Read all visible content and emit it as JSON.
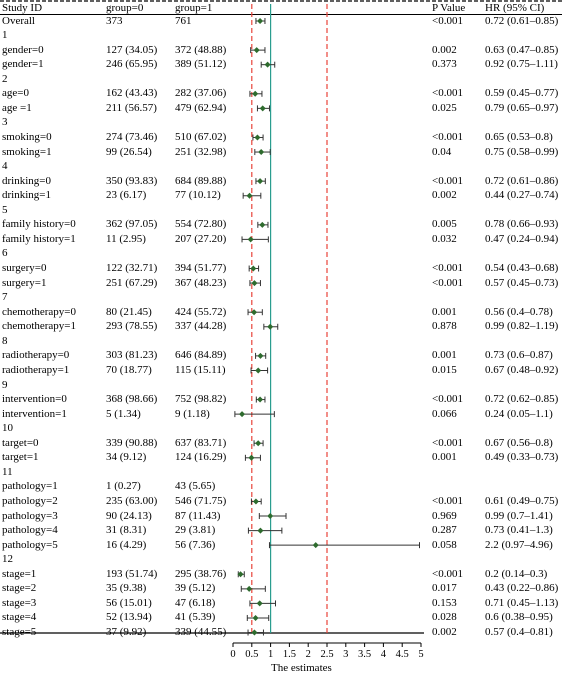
{
  "headers": {
    "study_id": "Study ID",
    "group0": "group=0",
    "group1": "group=1",
    "p_value": "P Value",
    "hr": "HR (95% CI)"
  },
  "rows": [
    {
      "label": "Overall",
      "g0": "373",
      "g1": "761",
      "p": "<0.001",
      "hr_text": "0.72 (0.61–0.85)"
    },
    {
      "label": "1",
      "g0": "",
      "g1": "",
      "p": "",
      "hr_text": ""
    },
    {
      "label": "gender=0",
      "g0": "127 (34.05)",
      "g1": "372 (48.88)",
      "p": "0.002",
      "hr_text": "0.63 (0.47–0.85)"
    },
    {
      "label": "gender=1",
      "g0": "246 (65.95)",
      "g1": "389 (51.12)",
      "p": "0.373",
      "hr_text": "0.92 (0.75–1.11)"
    },
    {
      "label": "2",
      "g0": "",
      "g1": "",
      "p": "",
      "hr_text": ""
    },
    {
      "label": "age=0",
      "g0": "162 (43.43)",
      "g1": "282 (37.06)",
      "p": "<0.001",
      "hr_text": "0.59 (0.45–0.77)"
    },
    {
      "label": "age =1",
      "g0": "211 (56.57)",
      "g1": "479 (62.94)",
      "p": "0.025",
      "hr_text": "0.79 (0.65–0.97)"
    },
    {
      "label": "3",
      "g0": "",
      "g1": "",
      "p": "",
      "hr_text": ""
    },
    {
      "label": "smoking=0",
      "g0": "274 (73.46)",
      "g1": "510 (67.02)",
      "p": "<0.001",
      "hr_text": "0.65 (0.53–0.8)"
    },
    {
      "label": "smoking=1",
      "g0": "99 (26.54)",
      "g1": "251 (32.98)",
      "p": "0.04",
      "hr_text": "0.75 (0.58–0.99)"
    },
    {
      "label": "4",
      "g0": "",
      "g1": "",
      "p": "",
      "hr_text": ""
    },
    {
      "label": "drinking=0",
      "g0": "350 (93.83)",
      "g1": "684 (89.88)",
      "p": "<0.001",
      "hr_text": "0.72 (0.61–0.86)"
    },
    {
      "label": "drinking=1",
      "g0": "23 (6.17)",
      "g1": "77 (10.12)",
      "p": "0.002",
      "hr_text": "0.44 (0.27–0.74)"
    },
    {
      "label": "5",
      "g0": "",
      "g1": "",
      "p": "",
      "hr_text": ""
    },
    {
      "label": "family history=0",
      "g0": "362 (97.05)",
      "g1": "554 (72.80)",
      "p": "0.005",
      "hr_text": "0.78 (0.66–0.93)"
    },
    {
      "label": "family history=1",
      "g0": "11 (2.95)",
      "g1": "207 (27.20)",
      "p": "0.032",
      "hr_text": "0.47 (0.24–0.94)"
    },
    {
      "label": "6",
      "g0": "",
      "g1": "",
      "p": "",
      "hr_text": ""
    },
    {
      "label": "surgery=0",
      "g0": "122 (32.71)",
      "g1": "394 (51.77)",
      "p": "<0.001",
      "hr_text": "0.54 (0.43–0.68)"
    },
    {
      "label": "surgery=1",
      "g0": "251 (67.29)",
      "g1": "367 (48.23)",
      "p": "<0.001",
      "hr_text": "0.57 (0.45–0.73)"
    },
    {
      "label": "7",
      "g0": "",
      "g1": "",
      "p": "",
      "hr_text": ""
    },
    {
      "label": "chemotherapy=0",
      "g0": "80 (21.45)",
      "g1": "424 (55.72)",
      "p": "0.001",
      "hr_text": "0.56 (0.4–0.78)"
    },
    {
      "label": "chemotherapy=1",
      "g0": "293 (78.55)",
      "g1": "337 (44.28)",
      "p": "0.878",
      "hr_text": "0.99 (0.82–1.19)"
    },
    {
      "label": "8",
      "g0": "",
      "g1": "",
      "p": "",
      "hr_text": ""
    },
    {
      "label": "radiotherapy=0",
      "g0": "303 (81.23)",
      "g1": "646 (84.89)",
      "p": "0.001",
      "hr_text": "0.73 (0.6–0.87)"
    },
    {
      "label": "radiotherapy=1",
      "g0": "70 (18.77)",
      "g1": "115 (15.11)",
      "p": "0.015",
      "hr_text": "0.67 (0.48–0.92)"
    },
    {
      "label": "9",
      "g0": "",
      "g1": "",
      "p": "",
      "hr_text": ""
    },
    {
      "label": "intervention=0",
      "g0": "368 (98.66)",
      "g1": "752 (98.82)",
      "p": "<0.001",
      "hr_text": "0.72 (0.62–0.85)"
    },
    {
      "label": "intervention=1",
      "g0": "5 (1.34)",
      "g1": "9 (1.18)",
      "p": "0.066",
      "hr_text": "0.24 (0.05–1.1)"
    },
    {
      "label": "10",
      "g0": "",
      "g1": "",
      "p": "",
      "hr_text": ""
    },
    {
      "label": "target=0",
      "g0": "339 (90.88)",
      "g1": "637 (83.71)",
      "p": "<0.001",
      "hr_text": "0.67 (0.56–0.8)"
    },
    {
      "label": "target=1",
      "g0": "34 (9.12)",
      "g1": "124 (16.29)",
      "p": "0.001",
      "hr_text": "0.49 (0.33–0.73)"
    },
    {
      "label": "11",
      "g0": "",
      "g1": "",
      "p": "",
      "hr_text": ""
    },
    {
      "label": "pathology=1",
      "g0": "1 (0.27)",
      "g1": "43 (5.65)",
      "p": "",
      "hr_text": ""
    },
    {
      "label": "pathology=2",
      "g0": "235 (63.00)",
      "g1": "546 (71.75)",
      "p": "<0.001",
      "hr_text": "0.61 (0.49–0.75)"
    },
    {
      "label": "pathology=3",
      "g0": "90 (24.13)",
      "g1": "87 (11.43)",
      "p": "0.969",
      "hr_text": "0.99 (0.7–1.41)"
    },
    {
      "label": "pathology=4",
      "g0": "31 (8.31)",
      "g1": "29 (3.81)",
      "p": "0.287",
      "hr_text": "0.73 (0.41–1.3)"
    },
    {
      "label": "pathology=5",
      "g0": "16 (4.29)",
      "g1": "56 (7.36)",
      "p": "0.058",
      "hr_text": "2.2 (0.97–4.96)"
    },
    {
      "label": "12",
      "g0": "",
      "g1": "",
      "p": "",
      "hr_text": ""
    },
    {
      "label": "stage=1",
      "g0": "193 (51.74)",
      "g1": "295 (38.76)",
      "p": "<0.001",
      "hr_text": "0.2 (0.14–0.3)"
    },
    {
      "label": "stage=2",
      "g0": "35 (9.38)",
      "g1": "39 (5.12)",
      "p": "0.017",
      "hr_text": "0.43 (0.22–0.86)"
    },
    {
      "label": "stage=3",
      "g0": "56 (15.01)",
      "g1": "47 (6.18)",
      "p": "0.153",
      "hr_text": "0.71 (0.45–1.13)"
    },
    {
      "label": "stage=4",
      "g0": "52 (13.94)",
      "g1": "41 (5.39)",
      "p": "0.028",
      "hr_text": "0.6 (0.38–0.95)"
    },
    {
      "label": "stage=5",
      "g0": "37 (9.92)",
      "g1": "339 (44.55)",
      "p": "0.002",
      "hr_text": "0.57 (0.4–0.81)"
    }
  ],
  "chart_data": {
    "type": "forest",
    "xlabel": "The estimates",
    "xlim": [
      0,
      5
    ],
    "xticks": [
      "0",
      "0.5",
      "1",
      "1.5",
      "2",
      "2.5",
      "3",
      "3.5",
      "4",
      "4.5",
      "5"
    ],
    "reference_lines": [
      {
        "x": 0.5,
        "style": "dashed",
        "color": "#e8443a"
      },
      {
        "x": 1,
        "style": "solid",
        "color": "#2a9d8f"
      },
      {
        "x": 2.5,
        "style": "dashed",
        "color": "#e8443a"
      }
    ],
    "point_color": "#2e6b2e",
    "estimates": [
      {
        "row": "Overall",
        "hr": 0.72,
        "lo": 0.61,
        "hi": 0.85
      },
      {
        "row": "gender=0",
        "hr": 0.63,
        "lo": 0.47,
        "hi": 0.85
      },
      {
        "row": "gender=1",
        "hr": 0.92,
        "lo": 0.75,
        "hi": 1.11
      },
      {
        "row": "age=0",
        "hr": 0.59,
        "lo": 0.45,
        "hi": 0.77
      },
      {
        "row": "age =1",
        "hr": 0.79,
        "lo": 0.65,
        "hi": 0.97
      },
      {
        "row": "smoking=0",
        "hr": 0.65,
        "lo": 0.53,
        "hi": 0.8
      },
      {
        "row": "smoking=1",
        "hr": 0.75,
        "lo": 0.58,
        "hi": 0.99
      },
      {
        "row": "drinking=0",
        "hr": 0.72,
        "lo": 0.61,
        "hi": 0.86
      },
      {
        "row": "drinking=1",
        "hr": 0.44,
        "lo": 0.27,
        "hi": 0.74
      },
      {
        "row": "family history=0",
        "hr": 0.78,
        "lo": 0.66,
        "hi": 0.93
      },
      {
        "row": "family history=1",
        "hr": 0.47,
        "lo": 0.24,
        "hi": 0.94
      },
      {
        "row": "surgery=0",
        "hr": 0.54,
        "lo": 0.43,
        "hi": 0.68
      },
      {
        "row": "surgery=1",
        "hr": 0.57,
        "lo": 0.45,
        "hi": 0.73
      },
      {
        "row": "chemotherapy=0",
        "hr": 0.56,
        "lo": 0.4,
        "hi": 0.78
      },
      {
        "row": "chemotherapy=1",
        "hr": 0.99,
        "lo": 0.82,
        "hi": 1.19
      },
      {
        "row": "radiotherapy=0",
        "hr": 0.73,
        "lo": 0.6,
        "hi": 0.87
      },
      {
        "row": "radiotherapy=1",
        "hr": 0.67,
        "lo": 0.48,
        "hi": 0.92
      },
      {
        "row": "intervention=0",
        "hr": 0.72,
        "lo": 0.62,
        "hi": 0.85
      },
      {
        "row": "intervention=1",
        "hr": 0.24,
        "lo": 0.05,
        "hi": 1.1
      },
      {
        "row": "target=0",
        "hr": 0.67,
        "lo": 0.56,
        "hi": 0.8
      },
      {
        "row": "target=1",
        "hr": 0.49,
        "lo": 0.33,
        "hi": 0.73
      },
      {
        "row": "pathology=2",
        "hr": 0.61,
        "lo": 0.49,
        "hi": 0.75
      },
      {
        "row": "pathology=3",
        "hr": 0.99,
        "lo": 0.7,
        "hi": 1.41
      },
      {
        "row": "pathology=4",
        "hr": 0.73,
        "lo": 0.41,
        "hi": 1.3
      },
      {
        "row": "pathology=5",
        "hr": 2.2,
        "lo": 0.97,
        "hi": 4.96
      },
      {
        "row": "stage=1",
        "hr": 0.2,
        "lo": 0.14,
        "hi": 0.3
      },
      {
        "row": "stage=2",
        "hr": 0.43,
        "lo": 0.22,
        "hi": 0.86
      },
      {
        "row": "stage=3",
        "hr": 0.71,
        "lo": 0.45,
        "hi": 1.13
      },
      {
        "row": "stage=4",
        "hr": 0.6,
        "lo": 0.38,
        "hi": 0.95
      },
      {
        "row": "stage=5",
        "hr": 0.57,
        "lo": 0.4,
        "hi": 0.81
      }
    ]
  }
}
